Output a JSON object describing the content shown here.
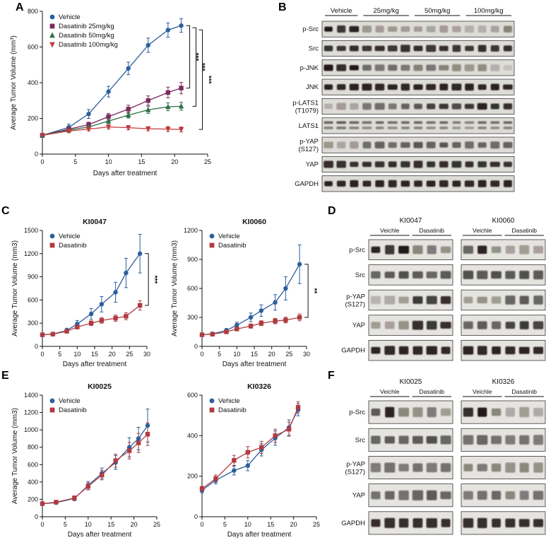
{
  "panels": {
    "a": {
      "label": "A"
    },
    "b": {
      "label": "B"
    },
    "c": {
      "label": "C"
    },
    "d": {
      "label": "D"
    },
    "e": {
      "label": "E"
    },
    "f": {
      "label": "F"
    }
  },
  "colors": {
    "vehicle_blue": "#2b5f9e",
    "dasatinib25_purple": "#7b2a5f",
    "dasatinib50_green": "#2e7045",
    "dasatinib100_red": "#c13b3c",
    "dasatinib_red": "#b03b40"
  },
  "chart_data": [
    {
      "id": "tumor-growth-main",
      "panel": "A",
      "type": "line",
      "title": "",
      "xlabel": "Days after treatment",
      "ylabel": "Average Tumor Volume (mm³)",
      "xlim": [
        0,
        25
      ],
      "ylim": [
        0,
        800
      ],
      "x_ticks": [
        0,
        5,
        10,
        15,
        20,
        25
      ],
      "y_ticks": [
        0,
        200,
        400,
        600,
        800
      ],
      "x": [
        0,
        4,
        7,
        10,
        13,
        16,
        19,
        21
      ],
      "legend": "top-left",
      "series": [
        {
          "name": "Vehicle",
          "color": "#2b5f9e",
          "marker": "circle",
          "values": [
            105,
            150,
            225,
            350,
            480,
            610,
            695,
            720
          ],
          "err": [
            12,
            18,
            25,
            30,
            35,
            40,
            40,
            38
          ]
        },
        {
          "name": "Dasatinib 25mg/kg",
          "color": "#7b2a5f",
          "marker": "square",
          "values": [
            105,
            140,
            165,
            210,
            252,
            300,
            345,
            370
          ],
          "err": [
            10,
            12,
            14,
            18,
            22,
            26,
            30,
            32
          ]
        },
        {
          "name": "Dasatinib 50mg/kg",
          "color": "#2e7045",
          "marker": "triangle-up",
          "values": [
            105,
            135,
            152,
            185,
            218,
            248,
            265,
            268
          ],
          "err": [
            10,
            10,
            12,
            14,
            16,
            20,
            22,
            22
          ]
        },
        {
          "name": "Dasatinib 100mg/kg",
          "color": "#c13b3c",
          "marker": "triangle-down",
          "values": [
            105,
            130,
            140,
            152,
            148,
            142,
            140,
            138
          ],
          "err": [
            8,
            10,
            10,
            12,
            12,
            12,
            14,
            14
          ]
        }
      ],
      "sig": [
        {
          "from": 0,
          "to": 1,
          "label": "***"
        },
        {
          "from": 0,
          "to": 2,
          "label": "***"
        },
        {
          "from": 0,
          "to": 3,
          "label": "***"
        }
      ]
    },
    {
      "id": "ki0047",
      "panel": "C",
      "type": "line",
      "title": "KI0047",
      "xlabel": "Days after treatment",
      "ylabel": "Average Tumor Volume (mm3)",
      "xlim": [
        0,
        30
      ],
      "ylim": [
        0,
        1500
      ],
      "x_ticks": [
        0,
        5,
        10,
        15,
        20,
        25,
        30
      ],
      "y_ticks": [
        0,
        300,
        600,
        900,
        1200,
        1500
      ],
      "x": [
        0,
        3,
        7,
        10,
        14,
        17,
        21,
        24,
        28
      ],
      "legend": "top-left",
      "series": [
        {
          "name": "Vehicle",
          "color": "#2b5f9e",
          "marker": "circle",
          "values": [
            150,
            160,
            205,
            290,
            420,
            545,
            700,
            950,
            1200
          ],
          "err": [
            15,
            20,
            30,
            45,
            70,
            100,
            130,
            190,
            250
          ]
        },
        {
          "name": "Dasatinib",
          "color": "#b03b40",
          "marker": "square",
          "values": [
            150,
            158,
            195,
            250,
            300,
            335,
            365,
            390,
            530
          ],
          "err": [
            12,
            14,
            18,
            25,
            30,
            35,
            40,
            45,
            60
          ]
        }
      ],
      "sig": [
        {
          "from": 0,
          "to": 1,
          "label": "***"
        }
      ]
    },
    {
      "id": "ki0060",
      "panel": "C",
      "type": "line",
      "title": "KI0060",
      "xlabel": "Days after treatment",
      "ylabel": "Average Tumor Volume (mm3)",
      "xlim": [
        0,
        30
      ],
      "ylim": [
        0,
        1200
      ],
      "x_ticks": [
        0,
        5,
        10,
        15,
        20,
        25,
        30
      ],
      "y_ticks": [
        0,
        300,
        600,
        900,
        1200
      ],
      "x": [
        0,
        3,
        7,
        10,
        14,
        17,
        21,
        24,
        28
      ],
      "legend": "top-left",
      "series": [
        {
          "name": "Vehicle",
          "color": "#2b5f9e",
          "marker": "circle",
          "values": [
            120,
            130,
            165,
            220,
            300,
            370,
            455,
            600,
            850
          ],
          "err": [
            12,
            15,
            20,
            30,
            45,
            60,
            80,
            120,
            200
          ]
        },
        {
          "name": "Dasatinib",
          "color": "#b03b40",
          "marker": "square",
          "values": [
            120,
            126,
            150,
            180,
            210,
            240,
            262,
            272,
            300
          ],
          "err": [
            10,
            12,
            14,
            18,
            22,
            25,
            28,
            30,
            35
          ]
        }
      ],
      "sig": [
        {
          "from": 0,
          "to": 1,
          "label": "**"
        }
      ]
    },
    {
      "id": "ki0025",
      "panel": "E",
      "type": "line",
      "title": "KI0025",
      "xlabel": "Days after treatment",
      "ylabel": "Average Tumor Volume (mm3)",
      "xlim": [
        0,
        25
      ],
      "ylim": [
        0,
        1400
      ],
      "x_ticks": [
        0,
        5,
        10,
        15,
        20,
        25
      ],
      "y_ticks": [
        0,
        200,
        400,
        600,
        800,
        1000,
        1200,
        1400
      ],
      "x": [
        0,
        3,
        7,
        10,
        13,
        16,
        19,
        21,
        23
      ],
      "legend": "top-left",
      "series": [
        {
          "name": "Vehicle",
          "color": "#2b5f9e",
          "marker": "circle",
          "values": [
            150,
            162,
            210,
            360,
            500,
            625,
            800,
            900,
            1050
          ],
          "err": [
            12,
            15,
            25,
            45,
            60,
            80,
            110,
            130,
            190
          ]
        },
        {
          "name": "Dasatinib",
          "color": "#b03b40",
          "marker": "square",
          "values": [
            150,
            168,
            215,
            350,
            480,
            645,
            760,
            850,
            950
          ],
          "err": [
            12,
            15,
            25,
            40,
            55,
            75,
            95,
            110,
            130
          ]
        }
      ],
      "sig": []
    },
    {
      "id": "ki0326",
      "panel": "E",
      "type": "line",
      "title": "KI0326",
      "xlabel": "Days after treatment",
      "ylabel": "",
      "xlim": [
        0,
        25
      ],
      "ylim": [
        0,
        600
      ],
      "x_ticks": [
        0,
        5,
        10,
        15,
        20,
        25
      ],
      "y_ticks": [
        0,
        200,
        400,
        600
      ],
      "x": [
        0,
        3,
        7,
        10,
        13,
        16,
        19,
        21
      ],
      "legend": "top-left",
      "series": [
        {
          "name": "Vehicle",
          "color": "#2b5f9e",
          "marker": "circle",
          "values": [
            130,
            180,
            228,
            252,
            330,
            388,
            440,
            528
          ],
          "err": [
            12,
            18,
            22,
            25,
            30,
            35,
            38,
            30
          ]
        },
        {
          "name": "Dasatinib",
          "color": "#b03b40",
          "marker": "square",
          "values": [
            138,
            188,
            278,
            318,
            342,
            400,
            432,
            540
          ],
          "err": [
            12,
            18,
            25,
            28,
            30,
            32,
            35,
            28
          ]
        }
      ],
      "sig": []
    }
  ],
  "blots": [
    {
      "id": "dose-response",
      "panel": "B",
      "layout": "single",
      "groups": [
        {
          "label": "Vehicle",
          "lanes": 3
        },
        {
          "label": "25mg/kg",
          "lanes": 4
        },
        {
          "label": "50mg/kg",
          "lanes": 4
        },
        {
          "label": "100mg/kg",
          "lanes": 4
        }
      ],
      "rows": [
        {
          "label": "p-Src",
          "bands": [
            0.95,
            0.8,
            0.9,
            0.35,
            0.3,
            0.35,
            0.3,
            0.3,
            0.25,
            0.3,
            0.28,
            0.2,
            0.2,
            0.25,
            0.45
          ]
        },
        {
          "label": "Src",
          "bands": [
            0.82,
            0.8,
            0.85,
            0.8,
            0.85,
            0.8,
            0.82,
            0.85,
            0.8,
            0.85,
            0.8,
            0.8,
            0.85,
            0.8,
            0.85
          ]
        },
        {
          "label": "p-JNK",
          "bands": [
            0.95,
            0.85,
            0.95,
            0.55,
            0.5,
            0.55,
            0.5,
            0.45,
            0.5,
            0.45,
            0.4,
            0.35,
            0.4,
            0.2,
            0.12
          ]
        },
        {
          "label": "JNK",
          "bands": [
            0.9,
            0.88,
            0.9,
            0.9,
            0.88,
            0.9,
            0.88,
            0.9,
            0.88,
            0.9,
            0.88,
            0.9,
            0.88,
            0.9,
            0.88
          ]
        },
        {
          "label": "p-LATS1\n(T1079)",
          "bands": [
            0.2,
            0.3,
            0.25,
            0.5,
            0.55,
            0.5,
            0.6,
            0.65,
            0.75,
            0.8,
            0.7,
            0.8,
            0.9,
            0.82,
            0.85
          ]
        },
        {
          "label": "LATS1",
          "doublet": true,
          "bands": [
            0.6,
            0.65,
            0.6,
            0.55,
            0.6,
            0.55,
            0.6,
            0.6,
            0.55,
            0.6,
            0.5,
            0.45,
            0.6,
            0.55,
            0.6
          ]
        },
        {
          "label": "p-YAP\n(S127)",
          "bands": [
            0.35,
            0.25,
            0.3,
            0.55,
            0.6,
            0.55,
            0.6,
            0.65,
            0.6,
            0.65,
            0.6,
            0.55,
            0.6,
            0.55,
            0.6
          ]
        },
        {
          "label": "YAP",
          "bands": [
            0.85,
            0.82,
            0.85,
            0.85,
            0.82,
            0.85,
            0.82,
            0.85,
            0.82,
            0.85,
            0.82,
            0.85,
            0.82,
            0.85,
            0.82
          ]
        },
        {
          "label": "GAPDH",
          "bands": [
            0.9,
            0.88,
            0.9,
            0.88,
            0.9,
            0.88,
            0.9,
            0.88,
            0.9,
            0.88,
            0.9,
            0.88,
            0.9,
            0.88,
            0.9
          ]
        }
      ]
    },
    {
      "id": "pdx-sensitive",
      "panel": "D",
      "layout": "grouped",
      "super_groups": [
        {
          "label": "KI0047",
          "sub": [
            {
              "label": "Veichle",
              "lanes": 3
            },
            {
              "label": "Dasatinib",
              "lanes": 3
            }
          ]
        },
        {
          "label": "KI0060",
          "sub": [
            {
              "label": "Veichle",
              "lanes": 3
            },
            {
              "label": "Dasatinib",
              "lanes": 3
            }
          ]
        }
      ],
      "rows": [
        {
          "label": "p-Src",
          "bands": [
            [
              0.9,
              0.8,
              0.95,
              0.45,
              0.5,
              0.4
            ],
            [
              0.6,
              0.9,
              0.4,
              0.3,
              0.35,
              0.3
            ]
          ]
        },
        {
          "label": "Src",
          "bands": [
            [
              0.6,
              0.65,
              0.7,
              0.65,
              0.6,
              0.65
            ],
            [
              0.7,
              0.65,
              0.7,
              0.65,
              0.7,
              0.65
            ]
          ]
        },
        {
          "label": "p-YAP\n(S127)",
          "bands": [
            [
              0.2,
              0.25,
              0.35,
              0.8,
              0.75,
              0.85
            ],
            [
              0.35,
              0.4,
              0.35,
              0.6,
              0.65,
              0.6
            ]
          ]
        },
        {
          "label": "YAP",
          "bands": [
            [
              0.35,
              0.3,
              0.4,
              0.85,
              0.8,
              0.85
            ],
            [
              0.6,
              0.65,
              0.6,
              0.75,
              0.8,
              0.75
            ]
          ]
        },
        {
          "label": "GAPDH",
          "bands": [
            [
              0.9,
              0.88,
              0.9,
              0.88,
              0.9,
              0.88
            ],
            [
              0.9,
              0.88,
              0.9,
              0.88,
              0.9,
              0.88
            ]
          ]
        }
      ]
    },
    {
      "id": "pdx-resistant",
      "panel": "F",
      "layout": "grouped",
      "super_groups": [
        {
          "label": "KI0025",
          "sub": [
            {
              "label": "Veichle",
              "lanes": 3
            },
            {
              "label": "Dasatinib",
              "lanes": 3
            }
          ]
        },
        {
          "label": "KI0326",
          "sub": [
            {
              "label": "Veichle",
              "lanes": 3
            },
            {
              "label": "Dasatinib",
              "lanes": 3
            }
          ]
        }
      ],
      "rows": [
        {
          "label": "p-Src",
          "bands": [
            [
              0.65,
              0.9,
              0.45,
              0.4,
              0.5,
              0.35
            ],
            [
              0.85,
              0.95,
              0.45,
              0.25,
              0.35,
              0.25
            ]
          ]
        },
        {
          "label": "Src",
          "bands": [
            [
              0.6,
              0.65,
              0.6,
              0.65,
              0.7,
              0.6
            ],
            [
              0.55,
              0.6,
              0.55,
              0.5,
              0.55,
              0.5
            ]
          ]
        },
        {
          "label": "p-YAP\n(S127)",
          "bands": [
            [
              0.5,
              0.55,
              0.5,
              0.55,
              0.5,
              0.55
            ],
            [
              0.45,
              0.5,
              0.45,
              0.4,
              0.45,
              0.4
            ]
          ]
        },
        {
          "label": "YAP",
          "bands": [
            [
              0.55,
              0.6,
              0.55,
              0.6,
              0.65,
              0.6
            ],
            [
              0.5,
              0.55,
              0.6,
              0.45,
              0.5,
              0.55
            ]
          ]
        },
        {
          "label": "GAPDH",
          "bands": [
            [
              0.85,
              0.85,
              0.85,
              0.85,
              0.85,
              0.85
            ],
            [
              0.85,
              0.85,
              0.85,
              0.85,
              0.85,
              0.85
            ]
          ]
        }
      ]
    }
  ]
}
